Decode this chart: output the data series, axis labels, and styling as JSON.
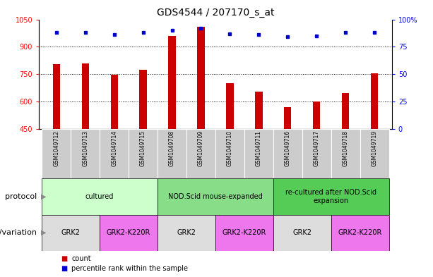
{
  "title": "GDS4544 / 207170_s_at",
  "samples": [
    "GSM1049712",
    "GSM1049713",
    "GSM1049714",
    "GSM1049715",
    "GSM1049708",
    "GSM1049709",
    "GSM1049710",
    "GSM1049711",
    "GSM1049716",
    "GSM1049717",
    "GSM1049718",
    "GSM1049719"
  ],
  "counts": [
    805,
    808,
    745,
    775,
    960,
    1010,
    700,
    655,
    570,
    600,
    645,
    755
  ],
  "percentiles": [
    88,
    88,
    86,
    88,
    90,
    92,
    87,
    86,
    84,
    85,
    88,
    88
  ],
  "ylim_left": [
    450,
    1050
  ],
  "ylim_right": [
    0,
    100
  ],
  "yticks_left": [
    450,
    600,
    750,
    900,
    1050
  ],
  "yticks_right": [
    0,
    25,
    50,
    75,
    100
  ],
  "ytick_right_labels": [
    "0",
    "25",
    "50",
    "75",
    "100%"
  ],
  "bar_color": "#cc0000",
  "dot_color": "#0000cc",
  "protocol_groups": [
    {
      "label": "cultured",
      "start": 0,
      "end": 4,
      "color": "#ccffcc"
    },
    {
      "label": "NOD.Scid mouse-expanded",
      "start": 4,
      "end": 8,
      "color": "#88dd88"
    },
    {
      "label": "re-cultured after NOD.Scid\nexpansion",
      "start": 8,
      "end": 12,
      "color": "#55cc55"
    }
  ],
  "genotype_groups": [
    {
      "label": "GRK2",
      "start": 0,
      "end": 2,
      "color": "#dddddd"
    },
    {
      "label": "GRK2-K220R",
      "start": 2,
      "end": 4,
      "color": "#ee77ee"
    },
    {
      "label": "GRK2",
      "start": 4,
      "end": 6,
      "color": "#dddddd"
    },
    {
      "label": "GRK2-K220R",
      "start": 6,
      "end": 8,
      "color": "#ee77ee"
    },
    {
      "label": "GRK2",
      "start": 8,
      "end": 10,
      "color": "#dddddd"
    },
    {
      "label": "GRK2-K220R",
      "start": 10,
      "end": 12,
      "color": "#ee77ee"
    }
  ],
  "sample_bg_color": "#cccccc",
  "legend_count_color": "#cc0000",
  "legend_percentile_color": "#0000cc",
  "title_fontsize": 10,
  "tick_fontsize": 7,
  "label_fontsize": 8,
  "sample_fontsize": 5.5,
  "protocol_fontsize": 7,
  "genotype_fontsize": 7,
  "legend_fontsize": 7,
  "bar_width": 0.25
}
